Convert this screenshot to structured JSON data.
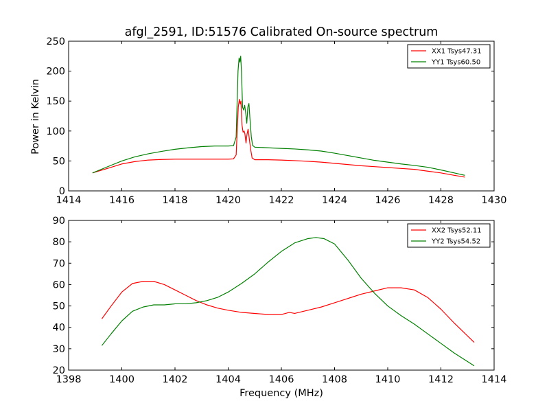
{
  "figure": {
    "title": "afgl_2591, ID:51576 Calibrated On-source spectrum",
    "xlabel": "Frequency (MHz)",
    "ylabel": "Power in Kelvin"
  },
  "chart_data": [
    {
      "type": "line",
      "xlim": [
        1414,
        1430
      ],
      "ylim": [
        0,
        250
      ],
      "xticks": [
        1414,
        1416,
        1418,
        1420,
        1422,
        1424,
        1426,
        1428,
        1430
      ],
      "yticks": [
        0,
        50,
        100,
        150,
        200,
        250
      ],
      "grid": false,
      "legend_position": "top-right",
      "series": [
        {
          "name": "XX1 Tsys47.31",
          "color": "#ff0000",
          "x": [
            1414.9,
            1415.5,
            1416,
            1416.5,
            1417,
            1417.5,
            1418,
            1418.5,
            1419,
            1419.5,
            1420,
            1420.2,
            1420.3,
            1420.38,
            1420.42,
            1420.45,
            1420.48,
            1420.52,
            1420.56,
            1420.6,
            1420.63,
            1420.67,
            1420.71,
            1420.75,
            1420.8,
            1420.85,
            1420.9,
            1421,
            1421.5,
            1422,
            1422.5,
            1423,
            1423.5,
            1424,
            1424.5,
            1425,
            1425.5,
            1426,
            1426.5,
            1427,
            1427.5,
            1428,
            1428.5,
            1428.9
          ],
          "y": [
            30,
            38,
            45,
            49,
            51.5,
            52.5,
            53,
            53,
            53,
            53,
            53,
            53.5,
            60,
            140,
            153,
            145,
            150,
            110,
            98,
            100,
            95,
            80,
            95,
            103,
            85,
            68,
            55,
            52,
            52,
            51.5,
            50.5,
            49.5,
            48,
            46,
            44,
            42,
            40.5,
            39,
            37.5,
            36,
            33,
            30,
            26,
            23
          ]
        },
        {
          "name": "YY1 Tsys60.50",
          "color": "#008000",
          "x": [
            1414.9,
            1415.5,
            1416,
            1416.5,
            1417,
            1417.5,
            1418,
            1418.5,
            1419,
            1419.5,
            1420,
            1420.2,
            1420.3,
            1420.37,
            1420.41,
            1420.44,
            1420.47,
            1420.5,
            1420.54,
            1420.58,
            1420.62,
            1420.66,
            1420.7,
            1420.74,
            1420.78,
            1420.82,
            1420.87,
            1420.92,
            1421,
            1421.5,
            1422,
            1422.5,
            1423,
            1423.5,
            1424,
            1424.5,
            1425,
            1425.5,
            1426,
            1426.5,
            1427,
            1427.5,
            1428,
            1428.5,
            1428.9
          ],
          "y": [
            30,
            41,
            50,
            57,
            62,
            66,
            69.5,
            72,
            74,
            75,
            75,
            75.5,
            90,
            200,
            222,
            215,
            225,
            200,
            140,
            135,
            143,
            130,
            113,
            140,
            146,
            120,
            90,
            76,
            73,
            72,
            71,
            70,
            68.5,
            66.5,
            63,
            59,
            55,
            51,
            48,
            45,
            42.5,
            39.5,
            35,
            30,
            26
          ]
        }
      ]
    },
    {
      "type": "line",
      "xlim": [
        1398,
        1414
      ],
      "ylim": [
        20,
        90
      ],
      "xticks": [
        1398,
        1400,
        1402,
        1404,
        1406,
        1408,
        1410,
        1412,
        1414
      ],
      "yticks": [
        20,
        30,
        40,
        50,
        60,
        70,
        80,
        90
      ],
      "grid": false,
      "legend_position": "top-right",
      "series": [
        {
          "name": "XX2 Tsys52.11",
          "color": "#ff0000",
          "x": [
            1399.25,
            1399.6,
            1400,
            1400.4,
            1400.8,
            1401.2,
            1401.6,
            1402,
            1402.4,
            1402.8,
            1403.2,
            1403.6,
            1404,
            1404.5,
            1405,
            1405.5,
            1406,
            1406.3,
            1406.5,
            1407,
            1407.5,
            1408,
            1408.5,
            1409,
            1409.5,
            1410,
            1410.5,
            1411,
            1411.5,
            1412,
            1412.5,
            1413,
            1413.25
          ],
          "y": [
            44,
            50,
            56.5,
            60.5,
            61.5,
            61.5,
            60,
            57.5,
            55,
            52.5,
            50.5,
            49,
            48,
            47,
            46.5,
            46,
            46,
            47,
            46.5,
            48,
            49.5,
            51.5,
            53.5,
            55.5,
            57,
            58.5,
            58.5,
            57.5,
            54,
            48.5,
            42,
            36,
            33
          ]
        },
        {
          "name": "YY2 Tsys54.52",
          "color": "#008000",
          "x": [
            1399.25,
            1399.6,
            1400,
            1400.4,
            1400.8,
            1401.2,
            1401.6,
            1402,
            1402.4,
            1402.8,
            1403.2,
            1403.6,
            1404,
            1404.5,
            1405,
            1405.5,
            1406,
            1406.5,
            1407,
            1407.3,
            1407.6,
            1408,
            1408.5,
            1409,
            1409.5,
            1410,
            1410.5,
            1411,
            1411.5,
            1412,
            1412.5,
            1413,
            1413.25
          ],
          "y": [
            31.5,
            37,
            43,
            47.5,
            49.5,
            50.5,
            50.5,
            51,
            51,
            51.5,
            52.5,
            54,
            56.5,
            60.5,
            65,
            70.5,
            75.5,
            79.5,
            81.5,
            82,
            81.5,
            79,
            71.5,
            63,
            56,
            50,
            45.5,
            41.5,
            37,
            32.5,
            28,
            24,
            22
          ]
        }
      ]
    }
  ]
}
